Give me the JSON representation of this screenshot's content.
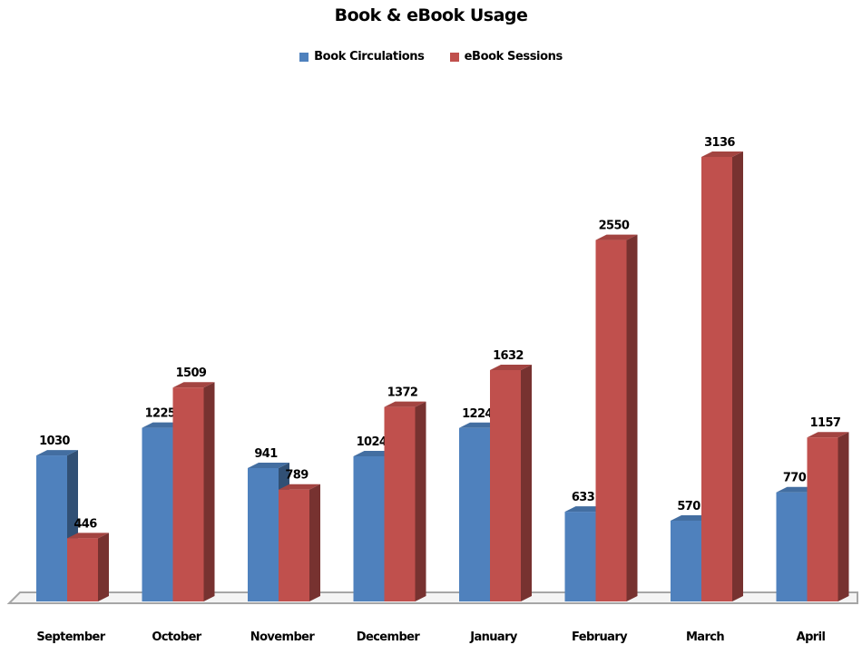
{
  "chart_data": {
    "type": "bar",
    "title": "Book & eBook Usage",
    "xlabel": "",
    "ylabel": "",
    "ylim": [
      0,
      3300
    ],
    "legend_position": "top",
    "grid": false,
    "categories": [
      "September",
      "October",
      "November",
      "December",
      "January",
      "February",
      "March",
      "April"
    ],
    "series": [
      {
        "name": "Book Circulations",
        "color": "#4F81BD",
        "values": [
          1030,
          1225,
          941,
          1024,
          1224,
          633,
          570,
          770
        ]
      },
      {
        "name": "eBook Sessions",
        "color": "#C0504D",
        "values": [
          446,
          1509,
          789,
          1372,
          1632,
          2550,
          3136,
          1157
        ]
      }
    ]
  }
}
